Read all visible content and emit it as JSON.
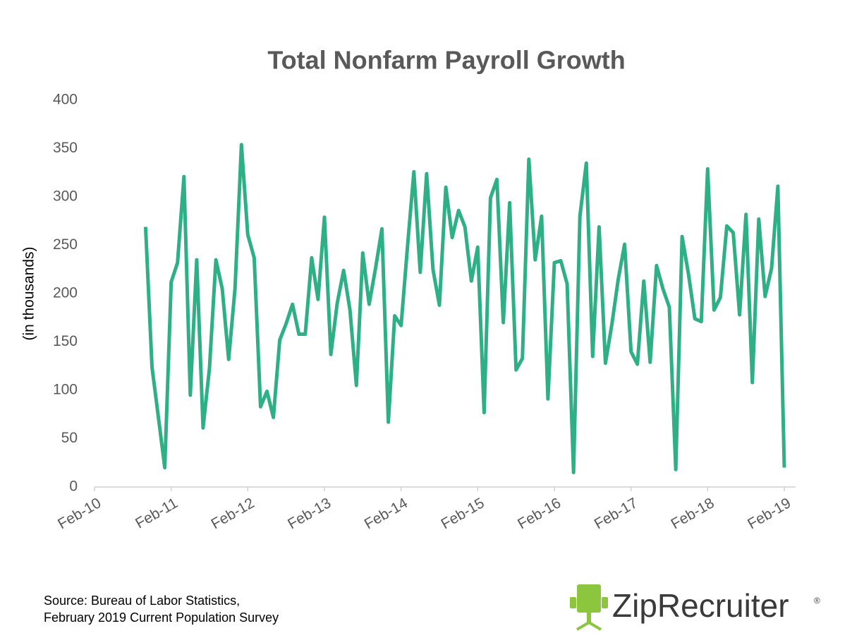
{
  "chart_data": {
    "type": "line",
    "title": "Total Nonfarm Payroll Growth",
    "y_label": "(in thousands)",
    "categories": [
      "Feb-10",
      null,
      null,
      null,
      null,
      null,
      null,
      null,
      null,
      null,
      null,
      null,
      "Feb-11",
      null,
      null,
      null,
      null,
      null,
      null,
      null,
      null,
      null,
      null,
      null,
      "Feb-12",
      null,
      null,
      null,
      null,
      null,
      null,
      null,
      null,
      null,
      null,
      null,
      "Feb-13",
      null,
      null,
      null,
      null,
      null,
      null,
      null,
      null,
      null,
      null,
      null,
      "Feb-14",
      null,
      null,
      null,
      null,
      null,
      null,
      null,
      null,
      null,
      null,
      null,
      "Feb-15",
      null,
      null,
      null,
      null,
      null,
      null,
      null,
      null,
      null,
      null,
      null,
      "Feb-16",
      null,
      null,
      null,
      null,
      null,
      null,
      null,
      null,
      null,
      null,
      null,
      "Feb-17",
      null,
      null,
      null,
      null,
      null,
      null,
      null,
      null,
      null,
      null,
      null,
      "Feb-18",
      null,
      null,
      null,
      null,
      null,
      null,
      null,
      null,
      null,
      null,
      null,
      "Feb-19"
    ],
    "values": [
      null,
      null,
      null,
      null,
      null,
      null,
      null,
      null,
      269,
      124,
      72,
      20,
      212,
      232,
      321,
      95,
      235,
      61,
      123,
      235,
      205,
      132,
      205,
      354,
      261,
      237,
      83,
      99,
      72,
      152,
      169,
      189,
      158,
      158,
      237,
      194,
      279,
      137,
      190,
      224,
      183,
      105,
      242,
      189,
      226,
      267,
      67,
      177,
      167,
      248,
      326,
      222,
      324,
      225,
      188,
      310,
      258,
      286,
      269,
      213,
      248,
      77,
      299,
      318,
      170,
      294,
      121,
      133,
      339,
      235,
      280,
      91,
      232,
      234,
      210,
      15,
      280,
      335,
      135,
      269,
      128,
      168,
      215,
      251,
      140,
      127,
      213,
      129,
      229,
      205,
      186,
      18,
      259,
      220,
      174,
      171,
      329,
      183,
      196,
      270,
      263,
      178,
      282,
      108,
      277,
      197,
      226,
      311,
      20
    ],
    "color": "#2faf85",
    "ylim": [
      0,
      400
    ],
    "yticks": [
      0,
      50,
      100,
      150,
      200,
      250,
      300,
      350,
      400
    ],
    "grid": false
  },
  "source": {
    "lines": [
      "Source: Bureau of Labor Statistics,",
      "February 2019 Current Population Survey"
    ]
  },
  "logo": {
    "text": "ZipRecruiter",
    "mark": "®"
  }
}
